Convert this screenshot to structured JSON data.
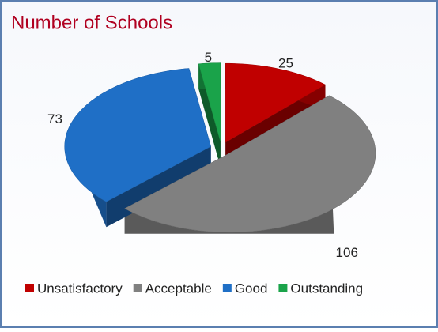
{
  "chart_data": {
    "type": "pie",
    "title": "Number of Schools",
    "categories": [
      "Unsatisfactory",
      "Acceptable",
      "Good",
      "Outstanding"
    ],
    "values": [
      25,
      106,
      73,
      5
    ],
    "colors": [
      "#c00000",
      "#808080",
      "#1f6fc6",
      "#1aa34a"
    ],
    "legend": "bottom"
  }
}
